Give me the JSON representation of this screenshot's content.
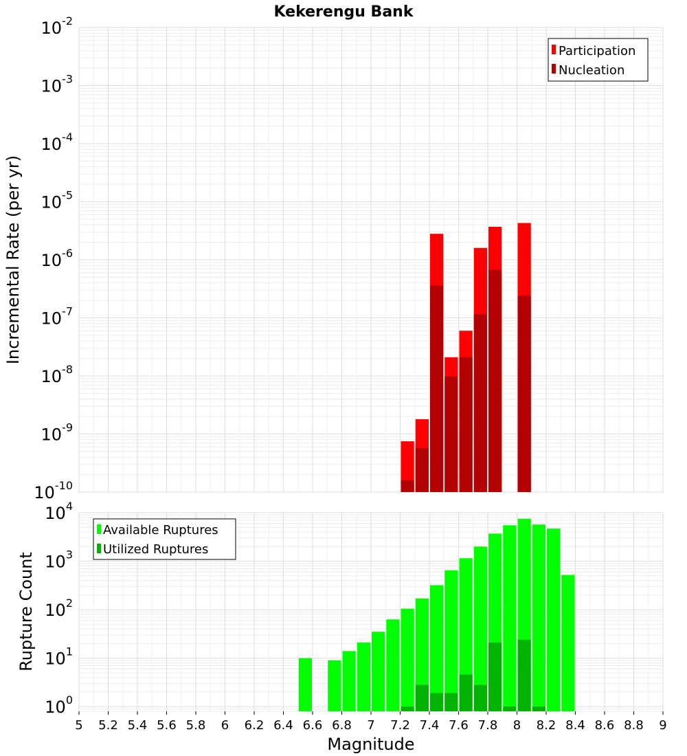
{
  "chart_data": [
    {
      "type": "bar",
      "title": "Kekerengu Bank",
      "ylabel": "Incremental Rate (per yr)",
      "xlabel": "",
      "yscale": "log",
      "ylim": [
        1e-10,
        0.01
      ],
      "y_ticks": [
        {
          "base": "10",
          "exp": "-10",
          "v": 1e-10
        },
        {
          "base": "10",
          "exp": "-9",
          "v": 1e-09
        },
        {
          "base": "10",
          "exp": "-8",
          "v": 1e-08
        },
        {
          "base": "10",
          "exp": "-7",
          "v": 1e-07
        },
        {
          "base": "10",
          "exp": "-6",
          "v": 1e-06
        },
        {
          "base": "10",
          "exp": "-5",
          "v": 1e-05
        },
        {
          "base": "10",
          "exp": "-4",
          "v": 0.0001
        },
        {
          "base": "10",
          "exp": "-3",
          "v": 0.001
        },
        {
          "base": "10",
          "exp": "-2",
          "v": 0.01
        }
      ],
      "xlim": [
        5,
        9
      ],
      "grid": true,
      "legend_position": "top-right",
      "series": [
        {
          "name": "Participation",
          "color": "#ff0000",
          "x": [
            7.25,
            7.35,
            7.45,
            7.55,
            7.65,
            7.75,
            7.85,
            8.05
          ],
          "values": [
            7.5e-10,
            1.8e-09,
            2.8e-06,
            2.1e-08,
            6e-08,
            1.6e-06,
            3.7e-06,
            4.3e-06
          ]
        },
        {
          "name": "Nucleation",
          "color": "#b30000",
          "x": [
            7.25,
            7.35,
            7.45,
            7.55,
            7.65,
            7.75,
            7.85,
            8.05
          ],
          "values": [
            1.6e-10,
            5.7e-10,
            3.6e-07,
            9.8e-09,
            2.1e-08,
            1.15e-07,
            6.7e-07,
            2.4e-07
          ]
        }
      ]
    },
    {
      "type": "bar",
      "title": "",
      "ylabel": "Rupture Count",
      "xlabel": "Magnitude",
      "yscale": "log",
      "ylim": [
        0.8,
        10000
      ],
      "y_ticks": [
        {
          "base": "10",
          "exp": "0",
          "v": 1
        },
        {
          "base": "10",
          "exp": "1",
          "v": 10
        },
        {
          "base": "10",
          "exp": "2",
          "v": 100
        },
        {
          "base": "10",
          "exp": "3",
          "v": 1000
        },
        {
          "base": "10",
          "exp": "4",
          "v": 10000
        }
      ],
      "xlim": [
        5,
        9
      ],
      "x_ticks": [
        "5",
        "5.2",
        "5.4",
        "5.6",
        "5.8",
        "6",
        "6.2",
        "6.4",
        "6.6",
        "6.8",
        "7",
        "7.2",
        "7.4",
        "7.6",
        "7.8",
        "8",
        "8.2",
        "8.4",
        "8.6",
        "8.8",
        "9"
      ],
      "grid": true,
      "legend_position": "top-left",
      "series": [
        {
          "name": "Available Ruptures",
          "color": "#00ff00",
          "x": [
            6.55,
            6.75,
            6.85,
            6.95,
            7.05,
            7.15,
            7.25,
            7.35,
            7.45,
            7.55,
            7.65,
            7.75,
            7.85,
            7.95,
            8.05,
            8.15,
            8.25,
            8.35
          ],
          "values": [
            10,
            9,
            14,
            21,
            35,
            63,
            105,
            170,
            320,
            650,
            1150,
            2000,
            3700,
            5500,
            7500,
            5700,
            4700,
            520
          ]
        },
        {
          "name": "Utilized Ruptures",
          "color": "#00b300",
          "x": [
            7.25,
            7.35,
            7.45,
            7.55,
            7.65,
            7.75,
            7.85,
            7.95,
            8.05,
            8.15
          ],
          "values": [
            1,
            2.8,
            1.9,
            1.9,
            4.6,
            2.8,
            21,
            1,
            24,
            1
          ]
        }
      ]
    }
  ]
}
